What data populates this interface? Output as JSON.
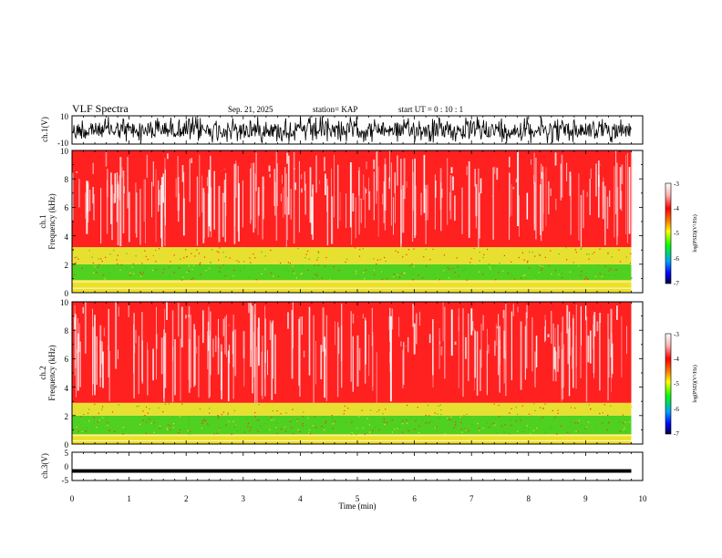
{
  "header": {
    "title": "VLF Spectra",
    "date": "Sep. 21, 2025",
    "station": "station= KAP",
    "start": "start  UT  =   0  : 10 : 1"
  },
  "chart_data": [
    {
      "type": "line",
      "name": "ch1-waveform",
      "ylabel": "ch.1(V)",
      "ylim": [
        -10,
        10
      ],
      "ytick_labels": [
        "10",
        "-10"
      ],
      "description_values": "dense oscillating waveform spanning roughly -10 to 10 V from t=0 to 9.8 min"
    },
    {
      "type": "heatmap",
      "name": "ch1-spectrogram",
      "ylabel_line1": "ch.1",
      "ylabel_line2": "Frequency  (kHz)",
      "ylim": [
        0,
        10
      ],
      "ytick_labels": [
        "10",
        "8",
        "6",
        "4",
        "2",
        "0"
      ],
      "bands": [
        {
          "from_khz": 0.0,
          "to_khz": 0.9,
          "level": -4.0
        },
        {
          "from_khz": 0.9,
          "to_khz": 2.0,
          "level": -5.3
        },
        {
          "from_khz": 2.0,
          "to_khz": 3.2,
          "level": -4.4
        },
        {
          "from_khz": 3.2,
          "to_khz": 10.0,
          "level": -3.7
        }
      ],
      "colorbar": {
        "label": "log(PSD)(V²/Hz)",
        "range": [
          -7,
          -3
        ],
        "tick_labels": [
          "-3",
          "-4",
          "-5",
          "-6",
          "-7"
        ]
      }
    },
    {
      "type": "heatmap",
      "name": "ch2-spectrogram",
      "ylabel_line1": "ch.2",
      "ylabel_line2": "Frequency  (kHz)",
      "ylim": [
        0,
        10
      ],
      "ytick_labels": [
        "10",
        "8",
        "6",
        "4",
        "2",
        "0"
      ],
      "bands": [
        {
          "from_khz": 0.0,
          "to_khz": 0.7,
          "level": -4.0
        },
        {
          "from_khz": 0.7,
          "to_khz": 2.0,
          "level": -5.4
        },
        {
          "from_khz": 2.0,
          "to_khz": 2.9,
          "level": -4.5
        },
        {
          "from_khz": 2.9,
          "to_khz": 10.0,
          "level": -3.7
        }
      ],
      "colorbar": {
        "label": "log(PSD)(V²/Hz)",
        "range": [
          -7,
          -3
        ],
        "tick_labels": [
          "-3",
          "-4",
          "-5",
          "-6",
          "-7"
        ]
      }
    },
    {
      "type": "line",
      "name": "ch3-waveform",
      "ylabel": "ch.3(V)",
      "ylim": [
        -5,
        5
      ],
      "ytick_labels": [
        "5",
        "0",
        "-5"
      ],
      "band": [
        -1.0,
        -1.6
      ]
    }
  ],
  "xaxis": {
    "label": "Time  (min)",
    "range": [
      0,
      10
    ],
    "data_end": 9.8,
    "tick_labels": [
      "0",
      "1",
      "2",
      "3",
      "4",
      "5",
      "6",
      "7",
      "8",
      "9",
      "10"
    ]
  },
  "colors": {
    "noise": "#ff2020",
    "band_low": "#e8e030",
    "band_mid": "#50d020",
    "trace": "#000000"
  }
}
